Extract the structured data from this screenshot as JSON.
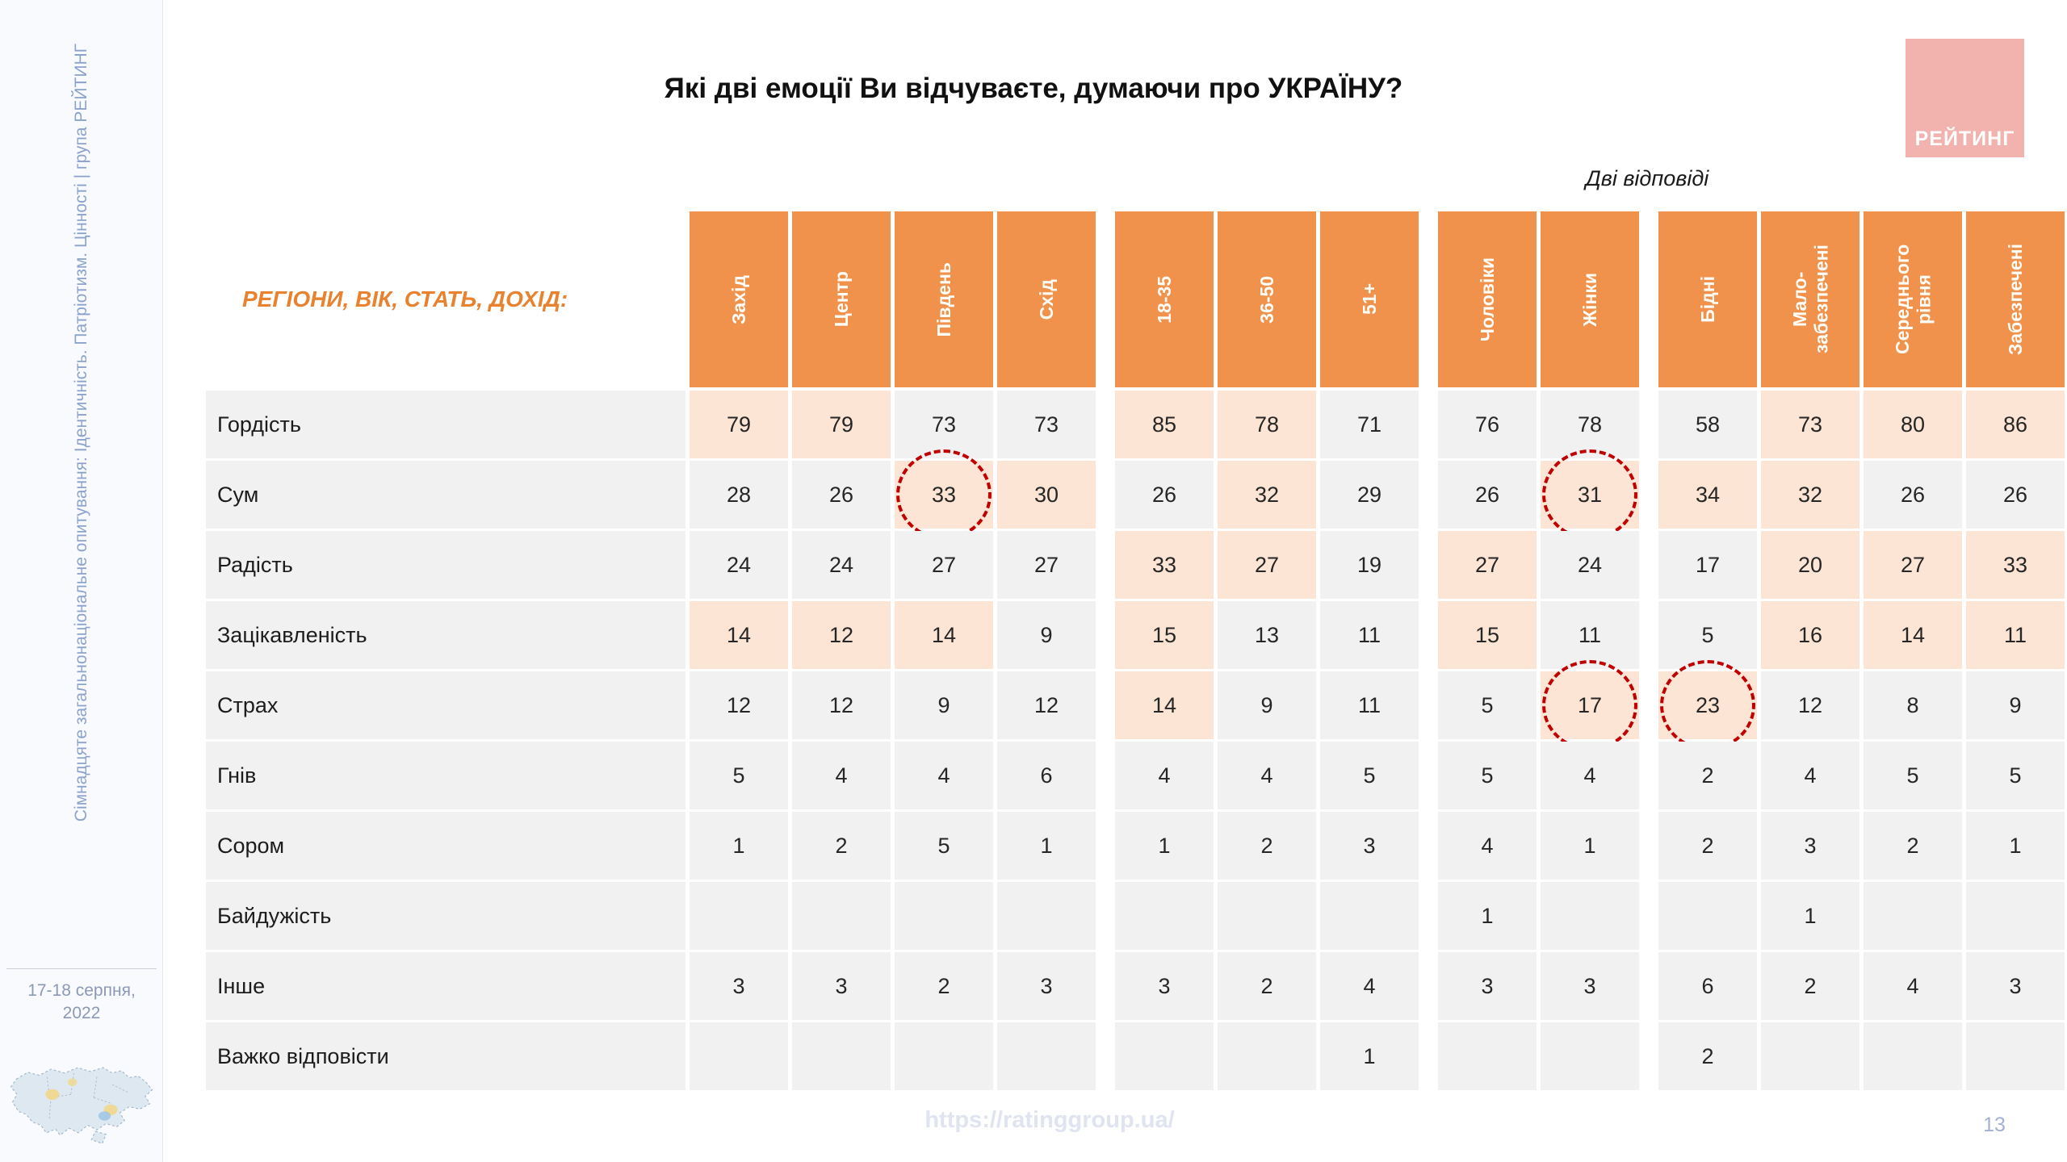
{
  "sidebar": {
    "vertical_text": "Сімнадцяте загальнонаціональне опитування: Ідентичність. Патріотизм. Цінності | група РЕЙТИНГ",
    "date_line1": "17-18 серпня,",
    "date_line2": "2022"
  },
  "header": {
    "title": "Які дві емоції Ви відчуваєте, думаючи про УКРАЇНУ?",
    "note": "Дві відповіді",
    "logo_text": "РЕЙТИНГ"
  },
  "table_header_label": "РЕГІОНИ, ВІК, СТАТЬ, ДОХІД:",
  "chart_data": {
    "type": "table",
    "title": "Які дві емоції Ви відчуваєте, думаючи про УКРАЇНУ?",
    "note": "Дві відповіді",
    "column_groups": [
      {
        "name": "regions",
        "columns": [
          "Захід",
          "Центр",
          "Південь",
          "Схід"
        ]
      },
      {
        "name": "age",
        "columns": [
          "18-35",
          "36-50",
          "51+"
        ]
      },
      {
        "name": "gender",
        "columns": [
          "Чоловіки",
          "Жінки"
        ]
      },
      {
        "name": "income",
        "columns": [
          "Бідні",
          "Мало-забезпечені",
          "Середнього рівня",
          "Забезпечені"
        ]
      }
    ],
    "rows": [
      {
        "label": "Гордість",
        "values": [
          [
            79,
            79,
            73,
            73
          ],
          [
            85,
            78,
            71
          ],
          [
            76,
            78
          ],
          [
            58,
            73,
            80,
            86
          ]
        ],
        "highlight": [
          [
            1,
            1,
            0,
            0
          ],
          [
            1,
            1,
            0
          ],
          [
            0,
            0
          ],
          [
            0,
            1,
            1,
            1
          ]
        ]
      },
      {
        "label": "Сум",
        "values": [
          [
            28,
            26,
            33,
            30
          ],
          [
            26,
            32,
            29
          ],
          [
            26,
            31
          ],
          [
            34,
            32,
            26,
            26
          ]
        ],
        "highlight": [
          [
            0,
            0,
            1,
            1
          ],
          [
            0,
            1,
            0
          ],
          [
            0,
            1
          ],
          [
            1,
            1,
            0,
            0
          ]
        ]
      },
      {
        "label": "Радість",
        "values": [
          [
            24,
            24,
            27,
            27
          ],
          [
            33,
            27,
            19
          ],
          [
            27,
            24
          ],
          [
            17,
            20,
            27,
            33
          ]
        ],
        "highlight": [
          [
            0,
            0,
            0,
            0
          ],
          [
            1,
            1,
            0
          ],
          [
            1,
            0
          ],
          [
            0,
            1,
            1,
            1
          ]
        ]
      },
      {
        "label": "Зацікавленість",
        "values": [
          [
            14,
            12,
            14,
            9
          ],
          [
            15,
            13,
            11
          ],
          [
            15,
            11
          ],
          [
            5,
            16,
            14,
            11
          ]
        ],
        "highlight": [
          [
            1,
            1,
            1,
            0
          ],
          [
            1,
            0,
            0
          ],
          [
            1,
            0
          ],
          [
            0,
            1,
            1,
            1
          ]
        ]
      },
      {
        "label": "Страх",
        "values": [
          [
            12,
            12,
            9,
            12
          ],
          [
            14,
            9,
            11
          ],
          [
            5,
            17
          ],
          [
            23,
            12,
            8,
            9
          ]
        ],
        "highlight": [
          [
            0,
            0,
            0,
            0
          ],
          [
            1,
            0,
            0
          ],
          [
            0,
            1
          ],
          [
            1,
            0,
            0,
            0
          ]
        ]
      },
      {
        "label": "Гнів",
        "values": [
          [
            5,
            4,
            4,
            6
          ],
          [
            4,
            4,
            5
          ],
          [
            5,
            4
          ],
          [
            2,
            4,
            5,
            5
          ]
        ],
        "highlight": [
          [
            0,
            0,
            0,
            0
          ],
          [
            0,
            0,
            0
          ],
          [
            0,
            0
          ],
          [
            0,
            0,
            0,
            0
          ]
        ]
      },
      {
        "label": "Сором",
        "values": [
          [
            1,
            2,
            5,
            1
          ],
          [
            1,
            2,
            3
          ],
          [
            4,
            1
          ],
          [
            2,
            3,
            2,
            1
          ]
        ],
        "highlight": [
          [
            0,
            0,
            0,
            0
          ],
          [
            0,
            0,
            0
          ],
          [
            0,
            0
          ],
          [
            0,
            0,
            0,
            0
          ]
        ]
      },
      {
        "label": "Байдужість",
        "values": [
          [
            "",
            "",
            "",
            ""
          ],
          [
            "",
            "",
            ""
          ],
          [
            1,
            ""
          ],
          [
            "",
            1,
            "",
            ""
          ]
        ],
        "highlight": [
          [
            0,
            0,
            0,
            0
          ],
          [
            0,
            0,
            0
          ],
          [
            0,
            0
          ],
          [
            0,
            0,
            0,
            0
          ]
        ]
      },
      {
        "label": "Інше",
        "values": [
          [
            3,
            3,
            2,
            3
          ],
          [
            3,
            2,
            4
          ],
          [
            3,
            3
          ],
          [
            6,
            2,
            4,
            3
          ]
        ],
        "highlight": [
          [
            0,
            0,
            0,
            0
          ],
          [
            0,
            0,
            0
          ],
          [
            0,
            0
          ],
          [
            0,
            0,
            0,
            0
          ]
        ]
      },
      {
        "label": "Важко відповісти",
        "values": [
          [
            "",
            "",
            "",
            ""
          ],
          [
            "",
            "",
            1
          ],
          [
            "",
            ""
          ],
          [
            2,
            "",
            "",
            ""
          ]
        ],
        "highlight": [
          [
            0,
            0,
            0,
            0
          ],
          [
            0,
            0,
            0
          ],
          [
            0,
            0
          ],
          [
            0,
            0,
            0,
            0
          ]
        ]
      }
    ],
    "circled_cells": [
      {
        "row": "Сум",
        "group": 0,
        "col": 2,
        "value": 33
      },
      {
        "row": "Сум",
        "group": 2,
        "col": 1,
        "value": 31
      },
      {
        "row": "Страх",
        "group": 2,
        "col": 1,
        "value": 17
      },
      {
        "row": "Страх",
        "group": 3,
        "col": 0,
        "value": 23
      }
    ]
  },
  "footer": {
    "url": "https://ratinggroup.ua/",
    "page_number": "13"
  },
  "colors": {
    "header_orange": "#F0914C",
    "highlight_peach": "#FCE5D5",
    "cell_gray": "#F1F1F2",
    "circle_red": "#C00000",
    "accent_orange_text": "#E8822E",
    "logo_pink": "#F2B2AE",
    "sidebar_text_blue": "#8BA3CD"
  }
}
